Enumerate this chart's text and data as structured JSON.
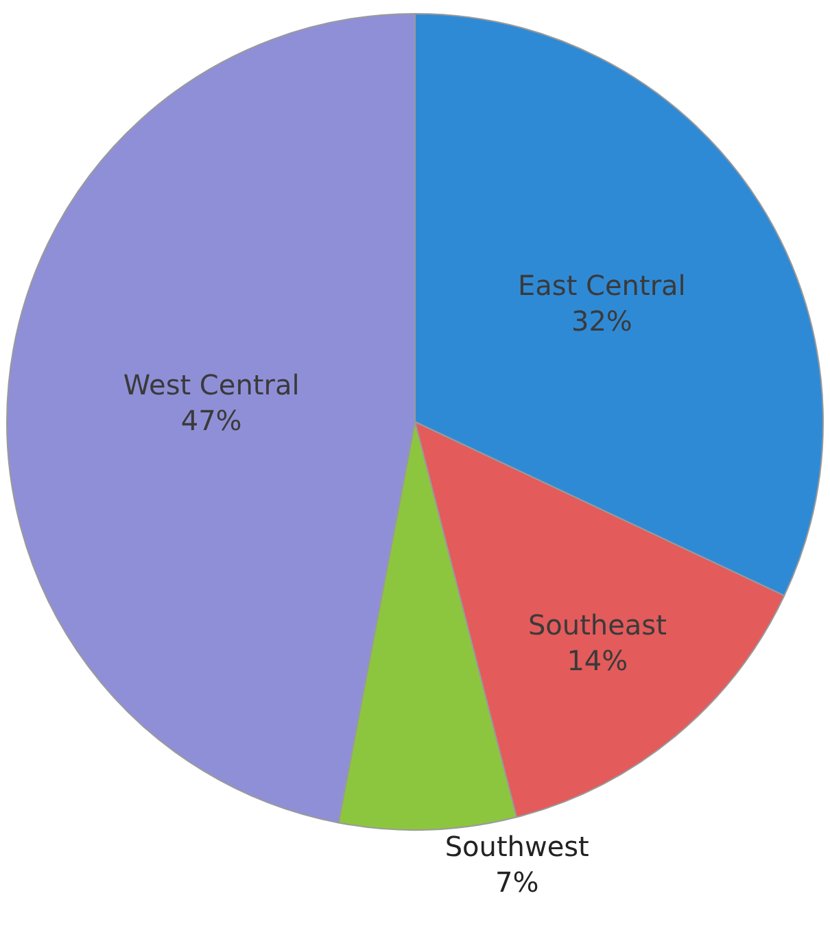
{
  "chart_data": {
    "type": "pie",
    "categories": [
      "East Central",
      "Southeast",
      "Southwest",
      "West Central"
    ],
    "values": [
      32,
      14,
      7,
      47
    ],
    "value_labels": [
      "32%",
      "14%",
      "7%",
      "47%"
    ],
    "colors": [
      "#2f8ad6",
      "#e35b5b",
      "#8cc63f",
      "#8f8fd8"
    ],
    "legend": false
  }
}
